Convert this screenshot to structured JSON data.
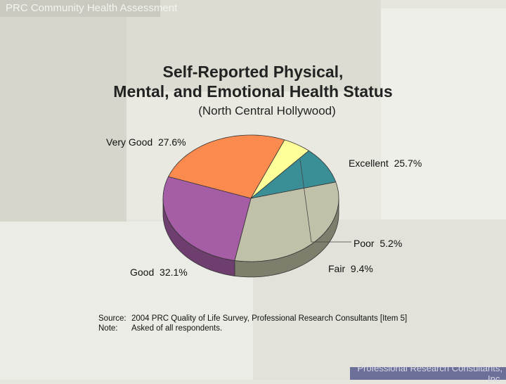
{
  "header": {
    "text": "PRC Community Health Assessment"
  },
  "footer": {
    "line1": "Professional Research Consultants,",
    "line2": "Inc."
  },
  "chart_data": {
    "type": "pie",
    "title_line1": "Self-Reported Physical,",
    "title_line2": "Mental, and Emotional Health Status",
    "subtitle": "(North Central Hollywood)",
    "slices": [
      {
        "label": "Excellent",
        "value": 25.7,
        "display": "25.7%",
        "color": "#fb8a4e",
        "side": "#c0673a"
      },
      {
        "label": "Poor",
        "value": 5.2,
        "display": "5.2%",
        "color": "#ffff99",
        "side": "#bdbd6e"
      },
      {
        "label": "Fair",
        "value": 9.4,
        "display": "9.4%",
        "color": "#3a8e96",
        "side": "#234f55"
      },
      {
        "label": "Good",
        "value": 32.1,
        "display": "32.1%",
        "color": "#c1c1aa",
        "side": "#7e7e6c"
      },
      {
        "label": "Very Good",
        "value": 27.6,
        "display": "27.6%",
        "color": "#a55ea5",
        "side": "#6e3e6e"
      }
    ],
    "source_label": "Source:",
    "source_text": "2004 PRC Quality of Life Survey, Professional Research Consultants [Item 5]",
    "note_label": "Note:",
    "note_text": "Asked of all respondents."
  }
}
